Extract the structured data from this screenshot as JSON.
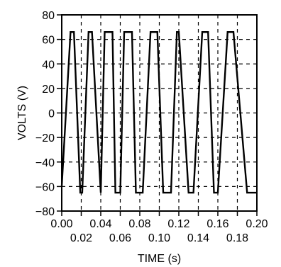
{
  "chart_data": {
    "type": "line",
    "xlabel": "TIME (s)",
    "ylabel": "VOLTS (V)",
    "xlim": [
      0,
      0.2
    ],
    "ylim": [
      -80,
      80
    ],
    "grid": true,
    "grid_style": "dashed",
    "x_ticks_upper": [
      "0.00",
      "0.04",
      "0.08",
      "0.12",
      "0.16",
      "0.20"
    ],
    "x_ticks_lower": [
      "0.02",
      "0.06",
      "0.10",
      "0.14",
      "0.18"
    ],
    "y_ticks": [
      "80",
      "60",
      "40",
      "20",
      "0",
      "−20",
      "−40",
      "−60",
      "−80"
    ],
    "series": [
      {
        "color": "#000000",
        "x": [
          0.0,
          0.009,
          0.0125,
          0.019,
          0.021,
          0.0275,
          0.031,
          0.04,
          0.044,
          0.052,
          0.055,
          0.06,
          0.064,
          0.072,
          0.076,
          0.083,
          0.091,
          0.098,
          0.104,
          0.112,
          0.118,
          0.12,
          0.13,
          0.135,
          0.144,
          0.15,
          0.156,
          0.16,
          0.17,
          0.176,
          0.19,
          0.2
        ],
        "y": [
          -60,
          66,
          66,
          -65,
          -65,
          66,
          66,
          -65,
          66,
          66,
          -65,
          -65,
          66,
          66,
          -65,
          -65,
          66,
          66,
          -65,
          -65,
          66,
          66,
          -65,
          -65,
          66,
          66,
          -65,
          -65,
          66,
          66,
          -65,
          -65
        ]
      }
    ],
    "line_color": "#000000"
  }
}
